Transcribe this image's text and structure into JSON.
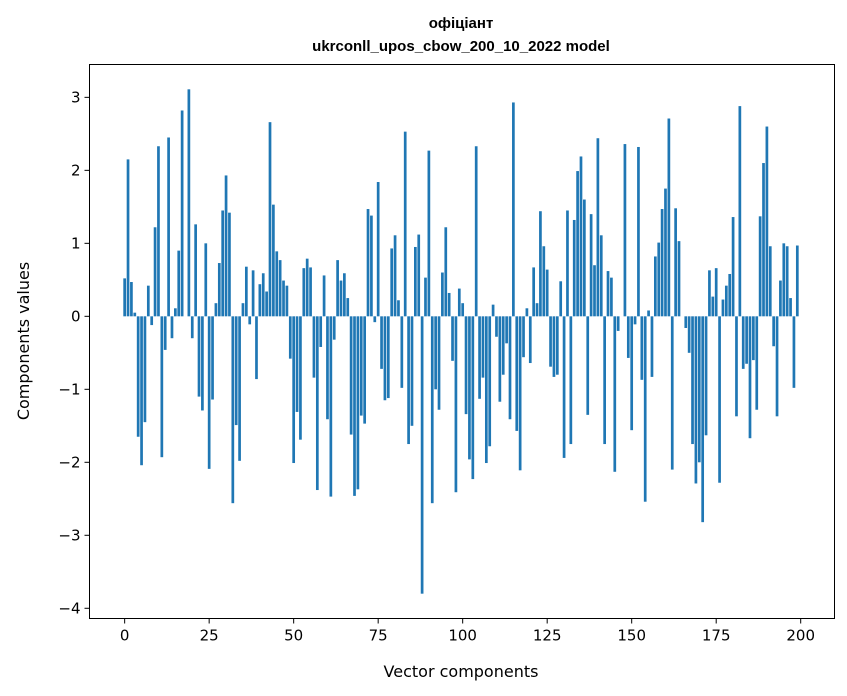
{
  "chart_data": {
    "type": "bar",
    "title": "офіціант",
    "subtitle": "ukrconll_upos_cbow_200_10_2022 model",
    "xlabel": "Vector components",
    "ylabel": "Components values",
    "xlim": [
      -10.4,
      210
    ],
    "ylim": [
      -4.14,
      3.45
    ],
    "xticks": [
      0,
      25,
      50,
      75,
      100,
      125,
      150,
      175,
      200
    ],
    "xtick_labels": [
      "0",
      "25",
      "50",
      "75",
      "100",
      "125",
      "150",
      "175",
      "200"
    ],
    "yticks": [
      -4,
      -3,
      -2,
      -1,
      0,
      1,
      2,
      3
    ],
    "ytick_labels": [
      "−4",
      "−3",
      "−2",
      "−1",
      "0",
      "1",
      "2",
      "3"
    ],
    "grid": false,
    "bar_color": "#1f77b4",
    "values": [
      0.52,
      2.15,
      0.47,
      0.05,
      -1.65,
      -2.04,
      -1.45,
      0.42,
      -0.12,
      1.22,
      2.33,
      -1.93,
      -0.46,
      2.45,
      -0.3,
      0.11,
      0.9,
      2.82,
      0,
      3.11,
      -0.3,
      1.26,
      -1.1,
      -1.29,
      1.0,
      -2.09,
      -1.14,
      0.18,
      0.73,
      1.45,
      1.93,
      1.42,
      -2.56,
      -1.49,
      -1.98,
      0.18,
      0.68,
      -0.11,
      0.63,
      -0.86,
      0.44,
      0.59,
      0.34,
      2.66,
      1.53,
      0.89,
      0.77,
      0.49,
      0.42,
      -0.58,
      -2.01,
      -1.31,
      -1.69,
      0.66,
      0.79,
      0.67,
      -0.84,
      -2.38,
      -0.42,
      0.56,
      -1.41,
      -2.47,
      -0.32,
      0.77,
      0.49,
      0.59,
      0.25,
      -1.62,
      -2.46,
      -2.37,
      -1.36,
      -1.47,
      1.47,
      1.38,
      -0.08,
      1.84,
      -0.72,
      -1.15,
      -1.12,
      0.93,
      1.11,
      0.22,
      -0.98,
      2.53,
      -1.75,
      -1.5,
      0.95,
      1.12,
      -3.8,
      0.53,
      2.27,
      -2.56,
      -1.0,
      -1.28,
      0.6,
      1.22,
      0.32,
      -0.61,
      -2.41,
      0.38,
      0.18,
      -1.34,
      -1.96,
      -2.23,
      2.33,
      -1.13,
      -0.84,
      -2.01,
      -1.78,
      0.16,
      -0.28,
      -1.17,
      -0.8,
      -0.37,
      -1.41,
      2.93,
      -1.57,
      -2.11,
      -0.56,
      0.11,
      -0.64,
      0.67,
      0.18,
      1.44,
      0.96,
      0.64,
      -0.69,
      -0.83,
      -0.8,
      0.48,
      -1.94,
      1.45,
      -1.75,
      1.32,
      1.99,
      2.19,
      1.6,
      -1.35,
      1.4,
      0.7,
      2.44,
      1.11,
      -1.75,
      0.62,
      0.53,
      -2.13,
      -0.2,
      0,
      2.36,
      -0.57,
      -1.56,
      -0.11,
      2.32,
      -0.87,
      -2.54,
      0.08,
      -0.83,
      0.82,
      1.01,
      1.47,
      1.75,
      2.71,
      -2.1,
      1.48,
      1.03,
      0,
      -0.16,
      -0.5,
      -1.75,
      -2.29,
      -2.0,
      -2.82,
      -1.63,
      0.63,
      0.27,
      0.66,
      -2.28,
      0.23,
      0.42,
      0.58,
      1.36,
      -1.37,
      2.88,
      -0.72,
      -0.65,
      -1.67,
      -0.6,
      -1.28,
      1.37,
      2.1,
      2.6,
      0.96,
      -0.41,
      -1.37,
      0.49,
      1.0,
      0.96,
      0.25,
      -0.98,
      0.97
    ]
  }
}
